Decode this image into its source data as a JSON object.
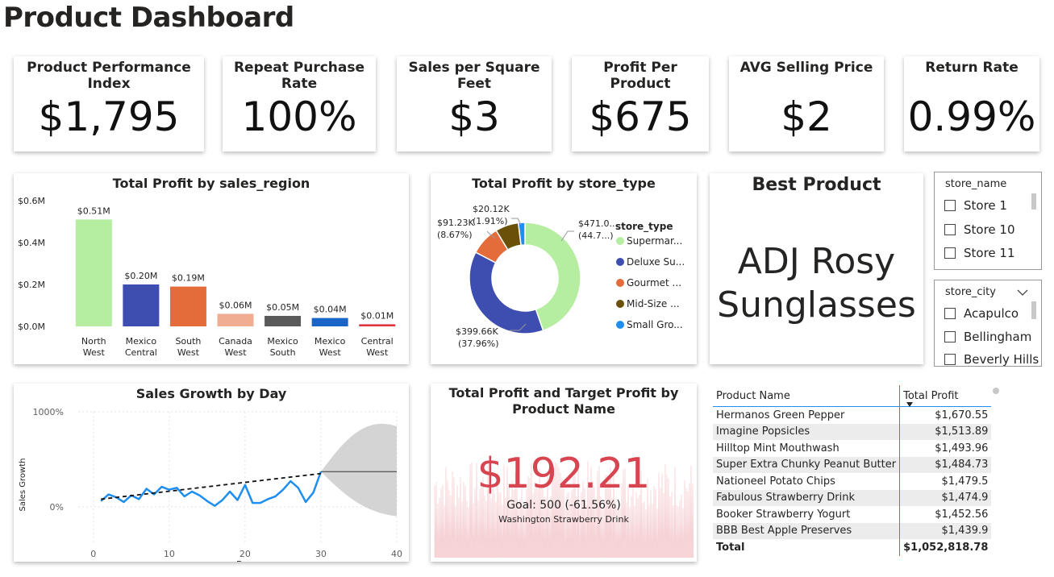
{
  "page_title": "Product Dashboard",
  "kpis": [
    {
      "label": "Product Performance Index",
      "value": "$1,795"
    },
    {
      "label": "Repeat Purchase Rate",
      "value": "100%"
    },
    {
      "label": "Sales per Square Feet",
      "value": "$3"
    },
    {
      "label": "Profit Per Product",
      "value": "$675"
    },
    {
      "label": "AVG Selling Price",
      "value": "$2"
    },
    {
      "label": "Return Rate",
      "value": "0.99%"
    }
  ],
  "best_product": {
    "label": "Best Product",
    "line1": "ADJ Rosy",
    "line2": "Sunglasses"
  },
  "slicers": {
    "store_name": {
      "title": "store_name",
      "items": [
        "Store 1",
        "Store 10",
        "Store 11"
      ]
    },
    "store_city": {
      "title": "store_city",
      "items": [
        "Acapulco",
        "Bellingham",
        "Beverly Hills"
      ]
    }
  },
  "chart_data": [
    {
      "type": "bar",
      "title": "Total Profit by sales_region",
      "categories": [
        "North West",
        "Mexico Central",
        "South West",
        "Canada West",
        "Mexico South",
        "Mexico West",
        "Central West"
      ],
      "values": [
        0.51,
        0.2,
        0.19,
        0.06,
        0.05,
        0.04,
        0.01
      ],
      "data_labels": [
        "$0.51M",
        "$0.20M",
        "$0.19M",
        "$0.06M",
        "$0.05M",
        "$0.04M",
        "$0.01M"
      ],
      "colors": [
        "#b5eea0",
        "#3e4db0",
        "#e46b3a",
        "#f1ad92",
        "#5a5a5a",
        "#1966c8",
        "#e0353d"
      ],
      "yticks": [
        "$0.0M",
        "$0.2M",
        "$0.4M",
        "$0.6M"
      ],
      "ylim": [
        0,
        0.6
      ]
    },
    {
      "type": "pie",
      "title": "Total Profit by store_type",
      "legend_title": "store_type",
      "legend_labels": [
        "Supermar...",
        "Deluxe Su...",
        "Gourmet ...",
        "Mid-Size ...",
        "Small Gro..."
      ],
      "values": [
        44.7,
        37.96,
        8.67,
        6.76,
        1.91
      ],
      "colors": [
        "#b5eea0",
        "#3e4db0",
        "#e46b3a",
        "#6b5108",
        "#1e8ef0"
      ],
      "data_labels": [
        {
          "value": "$471.0...",
          "pct": "(44.7...)"
        },
        {
          "value": "$399.66K",
          "pct": "(37.96%)"
        },
        {
          "value": "$91.23K",
          "pct": "(8.67%)"
        },
        {
          "value": "$20.12K",
          "pct": "(1.91%)"
        }
      ]
    },
    {
      "type": "line",
      "title": "Sales Growth by Day",
      "xlabel": "Day",
      "ylabel": "Sales Growth",
      "xticks": [
        0,
        10,
        20,
        30,
        40
      ],
      "yticks": [
        "0%",
        "1000%"
      ],
      "x": [
        1,
        2,
        3,
        4,
        5,
        6,
        7,
        8,
        9,
        10,
        11,
        12,
        13,
        14,
        15,
        16,
        17,
        18,
        19,
        20,
        21,
        22,
        23,
        24,
        25,
        26,
        27,
        28,
        29,
        30
      ],
      "y": [
        60,
        130,
        100,
        50,
        120,
        80,
        190,
        130,
        210,
        180,
        200,
        110,
        160,
        120,
        60,
        10,
        70,
        160,
        70,
        230,
        40,
        40,
        80,
        110,
        180,
        270,
        200,
        50,
        150,
        370
      ],
      "trend": [
        80,
        350
      ],
      "forecast_value": 370,
      "forecast_to": 40,
      "colors": {
        "line": "#1e8ef0",
        "forecast_band": "#d4d4d4"
      }
    }
  ],
  "gauge_card": {
    "title_line1": "Total Profit and Target Profit by",
    "title_line2": "Product Name",
    "value": "$192.21",
    "goal": "Goal: 500 (-61.56%)",
    "product": "Washington Strawberry Drink",
    "value_color": "#d64550"
  },
  "table": {
    "headers": [
      "Product Name",
      "Total Profit"
    ],
    "rows": [
      [
        "Hermanos Green Pepper",
        "$1,670.55"
      ],
      [
        "Imagine Popsicles",
        "$1,513.89"
      ],
      [
        "Hilltop Mint Mouthwash",
        "$1,493.96"
      ],
      [
        "Super Extra Chunky Peanut Butter",
        "$1,484.73"
      ],
      [
        "Nationeel Potato Chips",
        "$1,479.5"
      ],
      [
        "Fabulous Strawberry Drink",
        "$1,474.9"
      ],
      [
        "Booker Strawberry Yogurt",
        "$1,452.56"
      ],
      [
        "BBB Best Apple Preserves",
        "$1,439.9"
      ]
    ],
    "total_label": "Total",
    "total_value": "$1,052,818.78"
  }
}
